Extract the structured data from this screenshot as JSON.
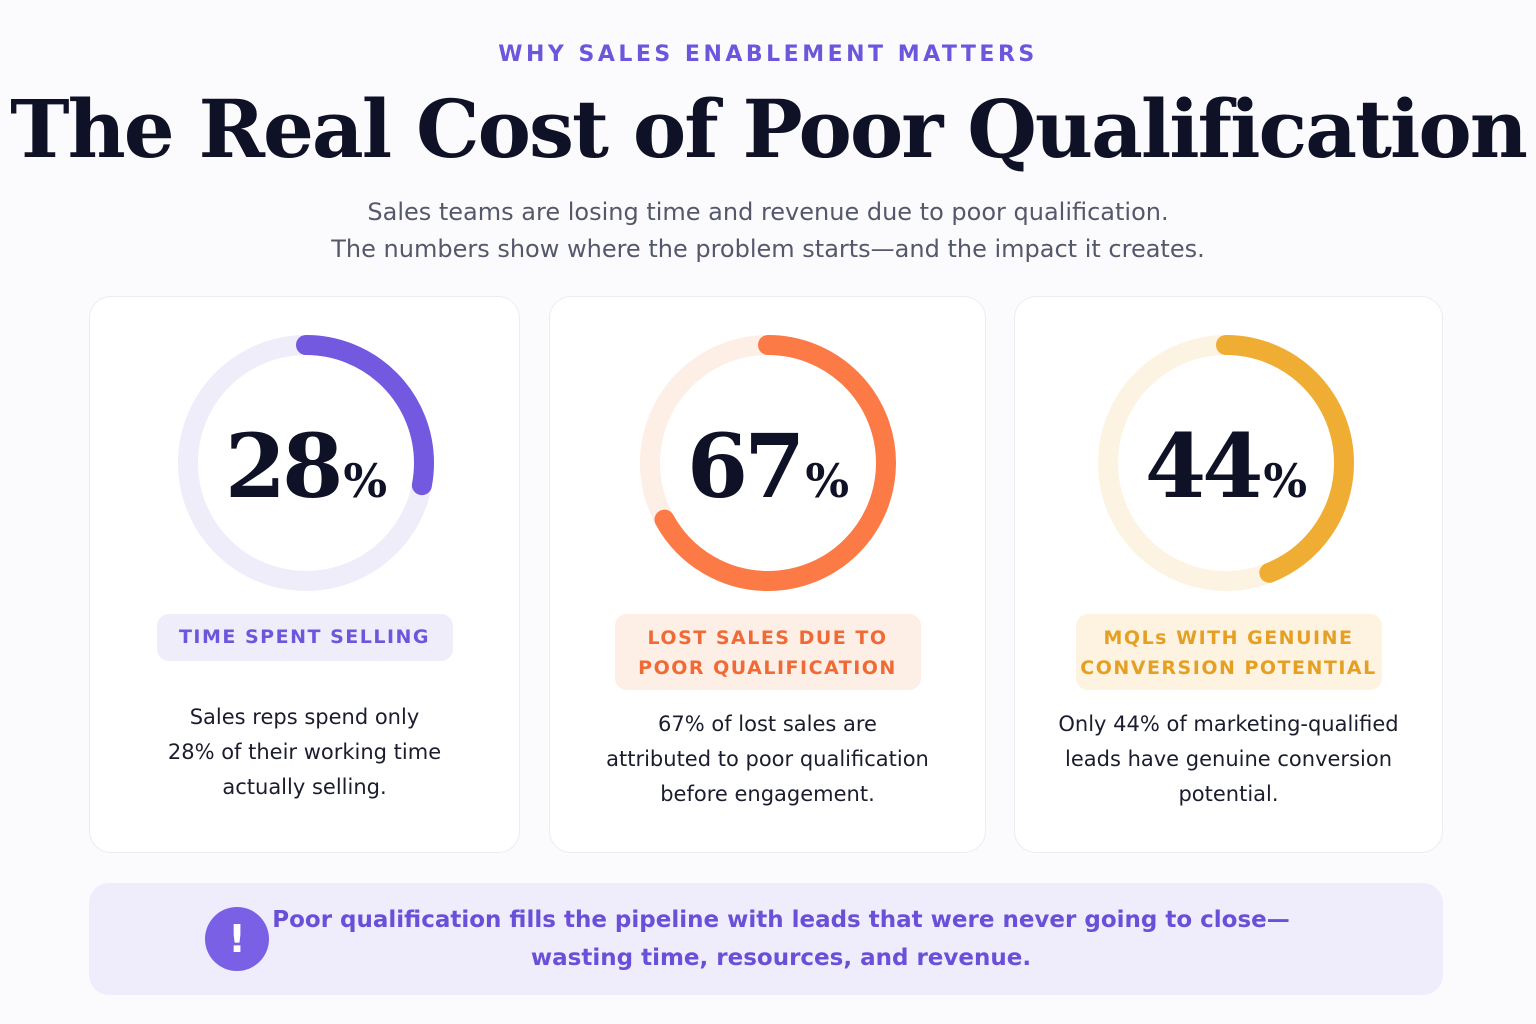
{
  "header": {
    "eyebrow": "WHY SALES ENABLEMENT MATTERS",
    "title": "The Real Cost of Poor Qualification",
    "subtitle_lines": [
      "Sales teams are losing time and revenue due to poor qualification.",
      "The numbers show where the problem starts—and the impact it creates."
    ]
  },
  "stats": [
    {
      "value": 28,
      "value_text": "28",
      "unit": "%",
      "fraction": 0.28,
      "color": "#7259e0",
      "track_color": "#efedf9",
      "pill_bg": "#efedfa",
      "label_lines": [
        "TIME SPENT SELLING"
      ],
      "description_lines": [
        "Sales reps spend only",
        "28% of their working time",
        "actually selling."
      ]
    },
    {
      "value": 67,
      "value_text": "67",
      "unit": "%",
      "fraction": 0.67,
      "color": "#fb7a45",
      "track_color": "#fdeee6",
      "pill_bg": "#fdeee6",
      "label_lines": [
        "LOST SALES DUE TO",
        "POOR QUALIFICATION"
      ],
      "description_lines": [
        "67% of lost sales are",
        "attributed to poor qualification",
        "before engagement."
      ]
    },
    {
      "value": 44,
      "value_text": "44",
      "unit": "%",
      "fraction": 0.44,
      "color": "#efad33",
      "track_color": "#fdf3e2",
      "pill_bg": "#fdf3e0",
      "label_lines": [
        "MQLs WITH GENUINE",
        "CONVERSION POTENTIAL"
      ],
      "description_lines": [
        "Only 44% of marketing-qualified",
        "leads have genuine conversion",
        "potential."
      ]
    }
  ],
  "callout": {
    "icon": "exclamation-icon",
    "icon_glyph": "!",
    "lines": [
      "Poor qualification fills the pipeline with leads that were never going to close—",
      "wasting time, resources, and revenue."
    ]
  }
}
